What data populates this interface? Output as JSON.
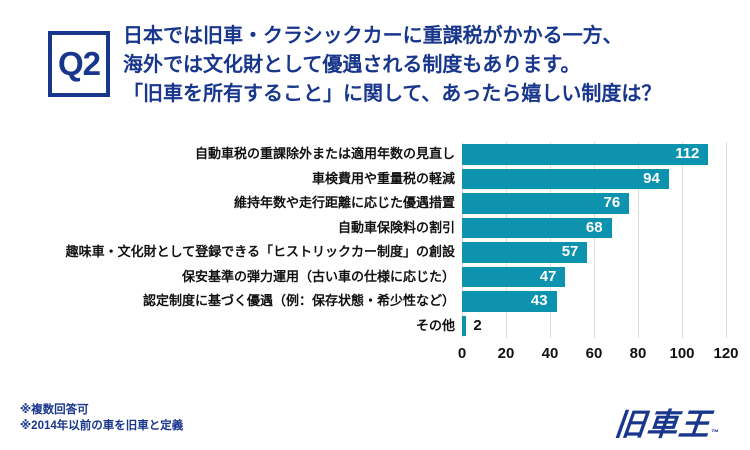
{
  "header": {
    "q_label": "Q2",
    "lines": [
      "日本では旧車・クラシックカーに重課税がかかる一方、",
      "海外では文化財として優遇される制度もあります。",
      "「旧車を所有すること」に関して、あったら嬉しい制度は？"
    ]
  },
  "chart_data": {
    "type": "bar",
    "orientation": "horizontal",
    "title": "",
    "xlabel": "",
    "ylabel": "",
    "categories": [
      "自動車税の重課除外または適用年数の見直し",
      "車検費用や重量税の軽減",
      "維持年数や走行距離に応じた優遇措置",
      "自動車保険料の割引",
      "趣味車・文化財として登録できる「ヒストリックカー制度」の創設",
      "保安基準の弾力運用（古い車の仕様に応じた）",
      "認定制度に基づく優遇（例：保存状態・希少性など）",
      "その他"
    ],
    "values": [
      112,
      94,
      76,
      68,
      57,
      47,
      43,
      2
    ],
    "xlim": [
      0,
      120
    ],
    "xticks": [
      0,
      20,
      40,
      60,
      80,
      100,
      120
    ],
    "grid": true,
    "legend": false,
    "bar_color": "#0E93AE",
    "value_label_color_inside": "#FFFFFF",
    "value_label_color_outside": "#111111"
  },
  "footnotes": [
    "※複数回答可",
    "※2014年以前の車を旧車と定義"
  ],
  "logo": {
    "text": "旧車王",
    "mark": "™"
  },
  "colors": {
    "navy": "#17368C",
    "teal": "#0E93AE",
    "grid": "#DCDCDC",
    "text": "#111111",
    "background": "#FFFFFF"
  }
}
